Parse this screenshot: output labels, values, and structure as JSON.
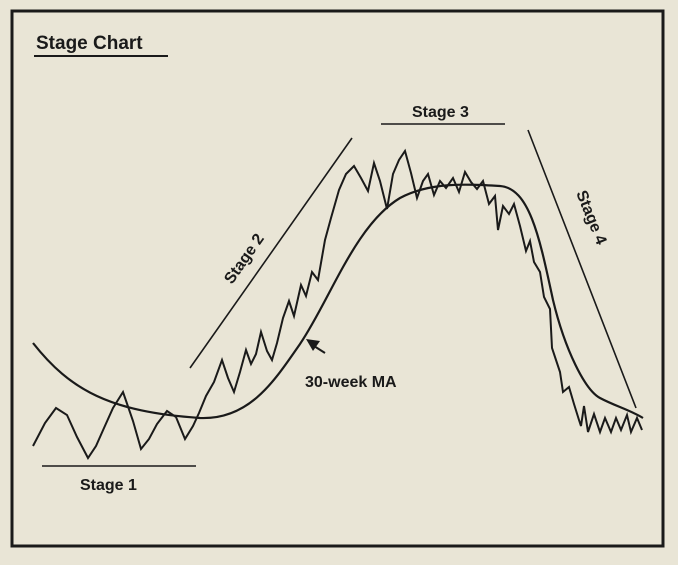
{
  "title": "Stage Chart",
  "labels": {
    "stage1": "Stage 1",
    "stage2": "Stage 2",
    "stage3": "Stage 3",
    "stage4": "Stage 4",
    "ma": "30-week MA"
  },
  "colors": {
    "paper": "#e9e5d6",
    "ink": "#1a1a1a"
  }
}
